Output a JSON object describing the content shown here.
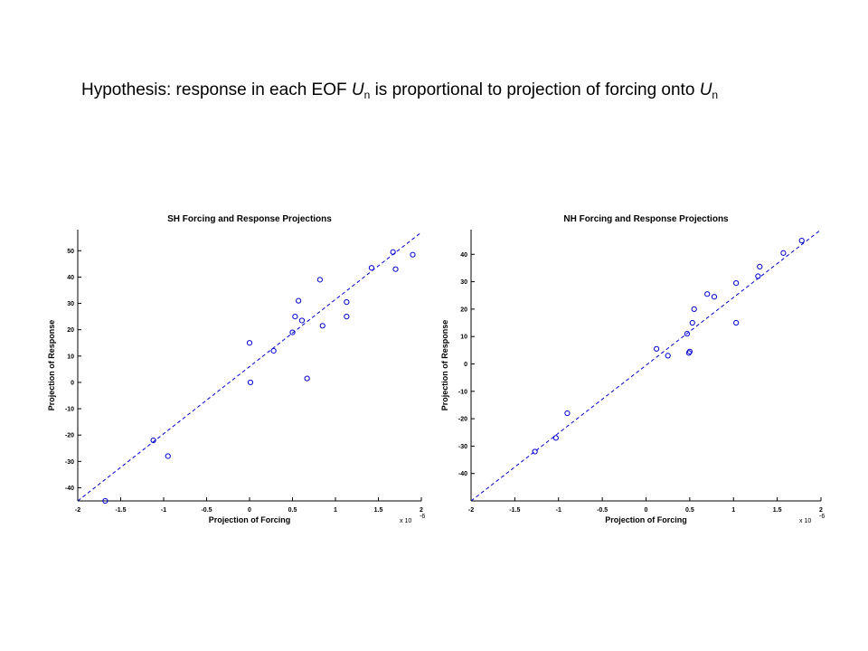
{
  "slide": {
    "title_part1": "Hypothesis:  response in each EOF ",
    "title_var": "U",
    "title_sub": "n",
    "title_part2": " is proportional to projection of forcing onto ",
    "title_var2": "U",
    "title_sub2": "n"
  },
  "colors": {
    "marker": "#0000cc",
    "fit_line": "#0000cc",
    "axis": "#000000"
  },
  "chart_data": [
    {
      "type": "scatter",
      "title": "SH Forcing and Response Projections",
      "xlabel": "Projection of Forcing",
      "ylabel": "Projection of Response",
      "x_exponent_label": "x 10",
      "x_exponent": "-6",
      "xlim": [
        -2,
        2
      ],
      "ylim": [
        -45,
        58
      ],
      "xticks": [
        -2,
        -1.5,
        -1,
        -0.5,
        0,
        0.5,
        1,
        1.5,
        2
      ],
      "xtick_labels": [
        "-2",
        "-1.5",
        "-1",
        "-0.5",
        "0",
        "0.5",
        "1",
        "1.5",
        "2"
      ],
      "yticks": [
        -40,
        -30,
        -20,
        -10,
        0,
        10,
        20,
        30,
        40,
        50
      ],
      "ytick_labels": [
        "-40",
        "-30",
        "-20",
        "-10",
        "0",
        "10",
        "20",
        "30",
        "40",
        "50"
      ],
      "grid": false,
      "fit_line": {
        "style": "dashed",
        "slope": 25.5,
        "intercept": 6
      },
      "points": [
        {
          "x": -1.68,
          "y": -45
        },
        {
          "x": -1.12,
          "y": -22
        },
        {
          "x": -0.95,
          "y": -28
        },
        {
          "x": 0.0,
          "y": 15
        },
        {
          "x": 0.01,
          "y": 0
        },
        {
          "x": 0.28,
          "y": 12
        },
        {
          "x": 0.5,
          "y": 19
        },
        {
          "x": 0.53,
          "y": 25
        },
        {
          "x": 0.57,
          "y": 31
        },
        {
          "x": 0.61,
          "y": 23.5
        },
        {
          "x": 0.67,
          "y": 1.5
        },
        {
          "x": 0.82,
          "y": 39
        },
        {
          "x": 0.85,
          "y": 21.5
        },
        {
          "x": 1.13,
          "y": 30.5
        },
        {
          "x": 1.13,
          "y": 25
        },
        {
          "x": 1.42,
          "y": 43.5
        },
        {
          "x": 1.67,
          "y": 49.5
        },
        {
          "x": 1.7,
          "y": 43
        },
        {
          "x": 1.9,
          "y": 48.5
        }
      ]
    },
    {
      "type": "scatter",
      "title": "NH Forcing and Response Projections",
      "xlabel": "Projection of Forcing",
      "ylabel": "Projection of Response",
      "x_exponent_label": "x 10",
      "x_exponent": "-6",
      "xlim": [
        -2,
        2
      ],
      "ylim": [
        -50,
        49
      ],
      "xticks": [
        -2,
        -1.5,
        -1,
        -0.5,
        0,
        0.5,
        1,
        1.5,
        2
      ],
      "xtick_labels": [
        "-2",
        "-1.5",
        "-1",
        "-0.5",
        "0",
        "0.5",
        "1",
        "1.5",
        "2"
      ],
      "yticks": [
        -40,
        -30,
        -20,
        -10,
        0,
        10,
        20,
        30,
        40
      ],
      "ytick_labels": [
        "-40",
        "-30",
        "-20",
        "-10",
        "0",
        "10",
        "20",
        "30",
        "40"
      ],
      "grid": false,
      "fit_line": {
        "style": "dashed",
        "slope": 24.75,
        "intercept": -0.5
      },
      "points": [
        {
          "x": -1.27,
          "y": -32
        },
        {
          "x": -1.03,
          "y": -27
        },
        {
          "x": -0.9,
          "y": -18
        },
        {
          "x": 0.12,
          "y": 5.5
        },
        {
          "x": 0.25,
          "y": 3
        },
        {
          "x": 0.47,
          "y": 11
        },
        {
          "x": 0.49,
          "y": 4
        },
        {
          "x": 0.5,
          "y": 4.5
        },
        {
          "x": 0.53,
          "y": 15
        },
        {
          "x": 0.55,
          "y": 20
        },
        {
          "x": 0.7,
          "y": 25.5
        },
        {
          "x": 0.78,
          "y": 24.5
        },
        {
          "x": 1.03,
          "y": 29.5
        },
        {
          "x": 1.03,
          "y": 15
        },
        {
          "x": 1.28,
          "y": 32
        },
        {
          "x": 1.3,
          "y": 35.5
        },
        {
          "x": 1.57,
          "y": 40.5
        },
        {
          "x": 1.78,
          "y": 45
        }
      ]
    }
  ]
}
